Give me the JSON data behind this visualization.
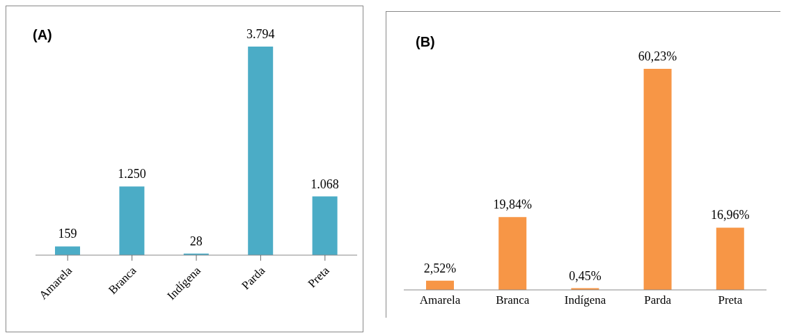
{
  "chart_data": [
    {
      "type": "bar",
      "title": "(A)",
      "categories": [
        "Amarela",
        "Branca",
        "Indígena",
        "Parda",
        "Preta"
      ],
      "values": [
        159,
        1250,
        28,
        3794,
        1068
      ],
      "color": "#4bacc6",
      "value_labels": [
        "159",
        "1.250",
        "28",
        "3.794",
        "1.068"
      ]
    },
    {
      "type": "bar",
      "title": "(B)",
      "categories": [
        "Amarela",
        "Branca",
        "Indígena",
        "Parda",
        "Preta"
      ],
      "values": [
        2.52,
        19.84,
        0.45,
        60.23,
        16.96
      ],
      "color": "#f79646",
      "value_labels": [
        "2,52%",
        "19,84%",
        "0,45%",
        "60,23%",
        "16,96%"
      ]
    }
  ]
}
